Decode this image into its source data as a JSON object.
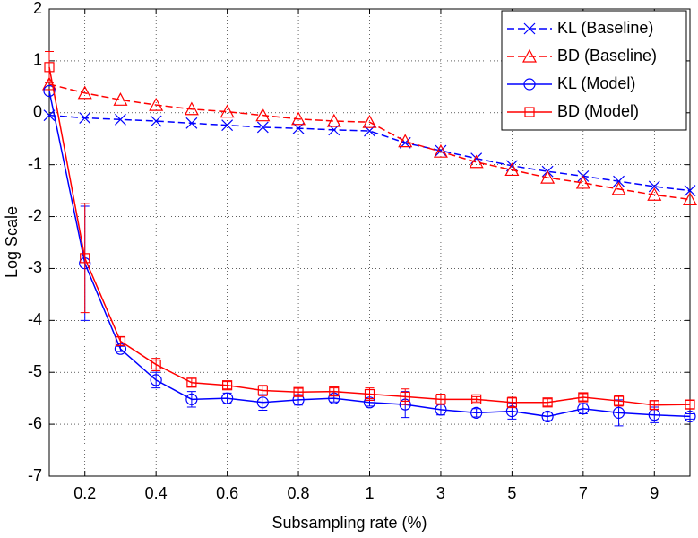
{
  "chart_data": {
    "type": "line",
    "xlabel": "Subsampling rate (%)",
    "ylabel": "Log Scale",
    "categories": [
      null,
      "0.2",
      null,
      "0.4",
      null,
      "0.6",
      null,
      "0.8",
      null,
      "1",
      null,
      "3",
      null,
      "5",
      null,
      "7",
      null,
      "9",
      null
    ],
    "ylim": [
      -7,
      2
    ],
    "yticks": [
      -7,
      -6,
      -5,
      -4,
      -3,
      -2,
      -1,
      0,
      1,
      2
    ],
    "grid": true,
    "legend": "upper right",
    "series": [
      {
        "name": "KL (Baseline)",
        "color": "#0000ff",
        "marker": "x",
        "linestyle": "dashed",
        "values": [
          -0.05,
          -0.1,
          -0.13,
          -0.16,
          -0.2,
          -0.24,
          -0.28,
          -0.3,
          -0.33,
          -0.35,
          -0.58,
          -0.73,
          -0.88,
          -1.02,
          -1.13,
          -1.22,
          -1.32,
          -1.42,
          -1.5
        ]
      },
      {
        "name": "BD (Baseline)",
        "color": "#ff0000",
        "marker": "triangle",
        "linestyle": "dashed",
        "values": [
          0.55,
          0.38,
          0.25,
          0.15,
          0.07,
          0.02,
          -0.05,
          -0.12,
          -0.16,
          -0.18,
          -0.55,
          -0.75,
          -0.95,
          -1.1,
          -1.25,
          -1.35,
          -1.47,
          -1.58,
          -1.67
        ]
      },
      {
        "name": "KL (Model)",
        "color": "#0000ff",
        "marker": "circle",
        "linestyle": "solid",
        "values": [
          0.42,
          -2.9,
          -4.55,
          -5.15,
          -5.52,
          -5.5,
          -5.58,
          -5.53,
          -5.5,
          -5.58,
          -5.62,
          -5.72,
          -5.78,
          -5.75,
          -5.85,
          -5.7,
          -5.78,
          -5.82,
          -5.85
        ],
        "errors": [
          0,
          1.1,
          0.05,
          0.15,
          0.15,
          0.1,
          0.15,
          0.1,
          0.07,
          0.07,
          0.25,
          0.1,
          0.08,
          0.15,
          0.08,
          0.1,
          0.25,
          0.15,
          0.05
        ]
      },
      {
        "name": "BD (Model)",
        "color": "#ff0000",
        "marker": "square",
        "linestyle": "solid",
        "values": [
          0.88,
          -2.8,
          -4.4,
          -4.85,
          -5.2,
          -5.25,
          -5.35,
          -5.38,
          -5.37,
          -5.42,
          -5.47,
          -5.52,
          -5.52,
          -5.58,
          -5.58,
          -5.48,
          -5.55,
          -5.63,
          -5.62
        ],
        "errors": [
          0.3,
          1.05,
          0.08,
          0.12,
          0.08,
          0.07,
          0.1,
          0.07,
          0.07,
          0.12,
          0.15,
          0.1,
          0.05,
          0.1,
          0.07,
          0.07,
          0.1,
          0.08,
          0.08
        ]
      }
    ]
  }
}
